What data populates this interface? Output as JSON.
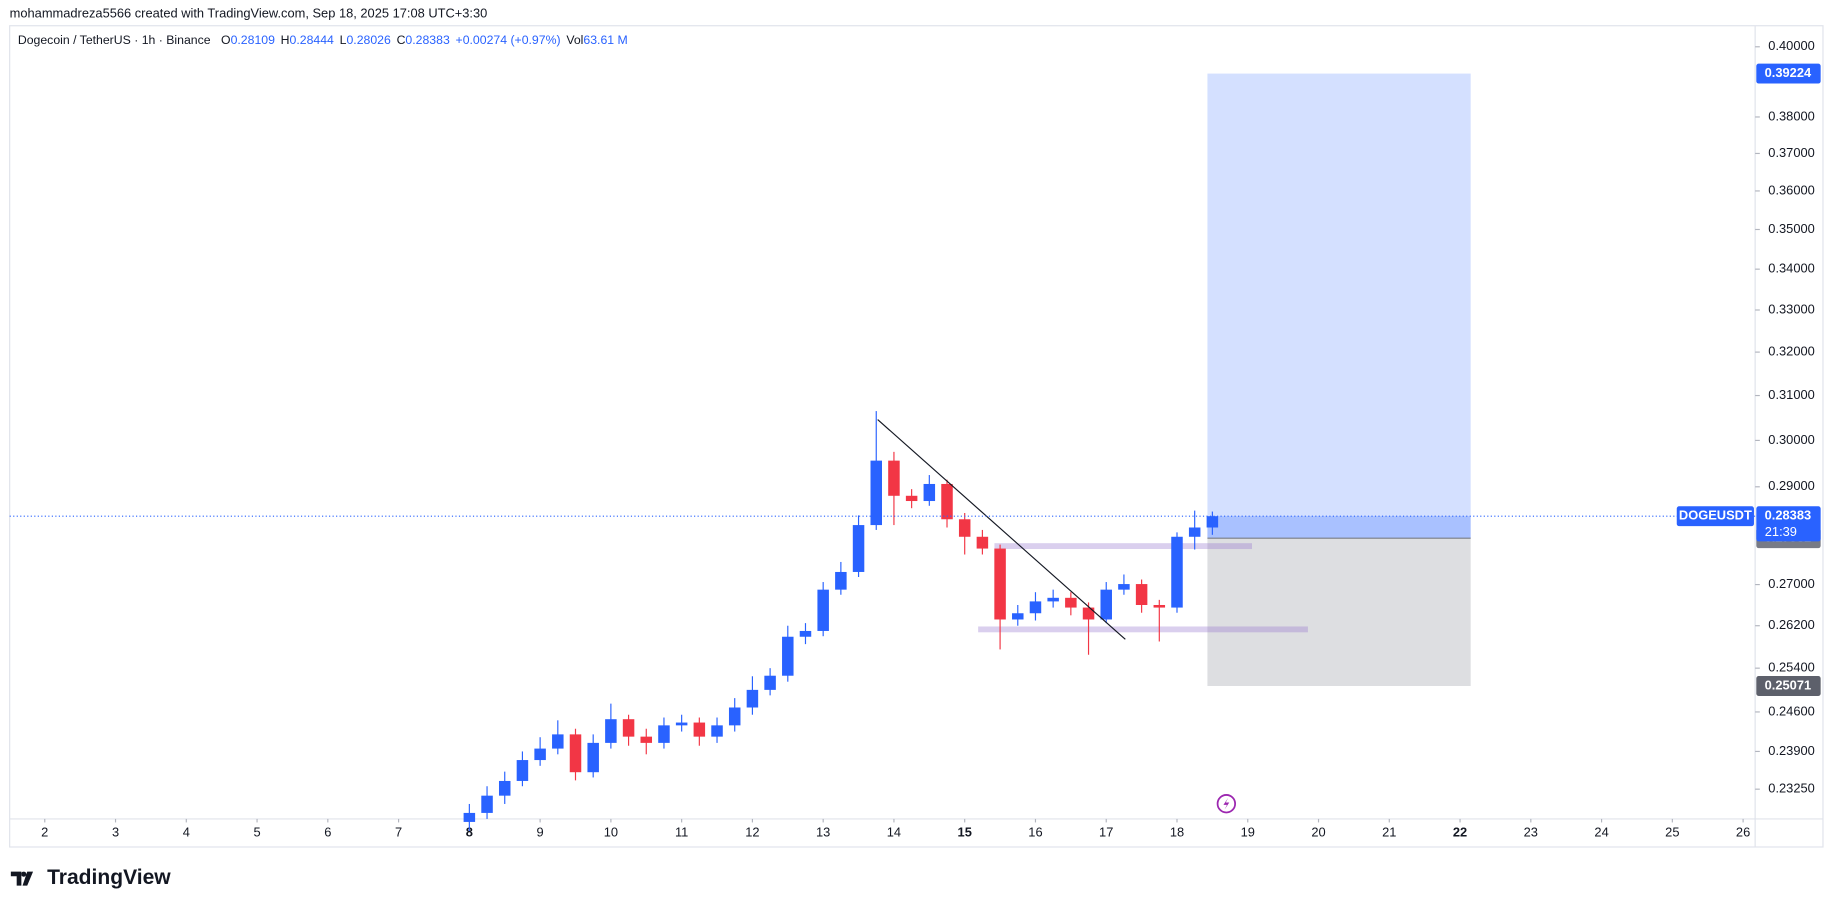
{
  "header": {
    "attribution": "mohammadreza5566 created with TradingView.com, Sep 18, 2025 17:08 UTC+3:30"
  },
  "chart_data": {
    "type": "candlestick",
    "legend": {
      "symbol": "Dogecoin / TetherUS · 1h · Binance",
      "open_label": "O",
      "open": 0.28109,
      "high_label": "H",
      "high": 0.28444,
      "low_label": "L",
      "low": 0.28026,
      "close_label": "C",
      "close": 0.28383,
      "change": "+0.00274 (+0.97%)",
      "volume_label": "Vol",
      "volume": "63.61 M"
    },
    "x": [
      8,
      8.25,
      8.5,
      8.75,
      9,
      9.25,
      9.5,
      9.75,
      10,
      10.25,
      10.5,
      10.75,
      11,
      11.25,
      11.5,
      11.75,
      12,
      12.25,
      12.5,
      12.75,
      13,
      13.25,
      13.5,
      13.75,
      14,
      14.25,
      14.5,
      14.75,
      15,
      15.25,
      15.5,
      15.75,
      16,
      16.25,
      16.5,
      16.75,
      17,
      17.25,
      17.5,
      17.75,
      18,
      18.25,
      18.5
    ],
    "open": [
      0.227,
      0.2285,
      0.2314,
      0.2339,
      0.2375,
      0.2395,
      0.242,
      0.2354,
      0.2405,
      0.2447,
      0.2416,
      0.2405,
      0.2436,
      0.2441,
      0.2416,
      0.2436,
      0.2468,
      0.25,
      0.2526,
      0.2599,
      0.261,
      0.269,
      0.2725,
      0.282,
      0.2956,
      0.2881,
      0.287,
      0.2906,
      0.2832,
      0.2796,
      0.2772,
      0.2632,
      0.2644,
      0.2667,
      0.2674,
      0.2655,
      0.2632,
      0.269,
      0.2701,
      0.266,
      0.2655,
      0.2796,
      0.2815
    ],
    "high": [
      0.23,
      0.233,
      0.2355,
      0.239,
      0.2415,
      0.2445,
      0.243,
      0.242,
      0.2475,
      0.2455,
      0.243,
      0.245,
      0.2455,
      0.245,
      0.245,
      0.2485,
      0.2525,
      0.254,
      0.262,
      0.2625,
      0.2705,
      0.2745,
      0.284,
      0.3065,
      0.2975,
      0.2895,
      0.2925,
      0.2915,
      0.2845,
      0.281,
      0.278,
      0.266,
      0.2685,
      0.269,
      0.2685,
      0.2665,
      0.2705,
      0.272,
      0.271,
      0.267,
      0.2805,
      0.285,
      0.2848
    ],
    "low": [
      0.2255,
      0.2275,
      0.23,
      0.233,
      0.2365,
      0.2385,
      0.234,
      0.2345,
      0.2395,
      0.24,
      0.2385,
      0.2395,
      0.2425,
      0.24,
      0.2405,
      0.2425,
      0.2455,
      0.249,
      0.2515,
      0.2585,
      0.26,
      0.268,
      0.2715,
      0.281,
      0.282,
      0.2855,
      0.286,
      0.2815,
      0.276,
      0.276,
      0.2575,
      0.262,
      0.263,
      0.2655,
      0.264,
      0.2565,
      0.2625,
      0.268,
      0.2645,
      0.259,
      0.2645,
      0.277,
      0.28
    ],
    "close": [
      0.2285,
      0.2314,
      0.2339,
      0.2375,
      0.2395,
      0.242,
      0.2354,
      0.2405,
      0.2447,
      0.2416,
      0.2405,
      0.2436,
      0.2441,
      0.2416,
      0.2436,
      0.2468,
      0.25,
      0.2526,
      0.2599,
      0.261,
      0.269,
      0.2725,
      0.282,
      0.2956,
      0.2881,
      0.287,
      0.2906,
      0.2832,
      0.2796,
      0.2772,
      0.2632,
      0.2644,
      0.2667,
      0.2674,
      0.2655,
      0.2632,
      0.269,
      0.2701,
      0.266,
      0.2655,
      0.2796,
      0.2815,
      0.28383
    ],
    "up_color": "#2962ff",
    "down_color": "#f23645",
    "xlim": [
      1.504,
      26.17
    ],
    "xticks": [
      2,
      3,
      4,
      5,
      6,
      7,
      8,
      9,
      10,
      11,
      12,
      13,
      14,
      15,
      16,
      17,
      18,
      19,
      20,
      21,
      22,
      23,
      24,
      25,
      26
    ],
    "bold_xticks": [
      8,
      15,
      22
    ],
    "ylim": [
      0.2275,
      0.4062
    ],
    "log": true,
    "yticks": [
      {
        "value": 0.4,
        "label": "0.40000"
      },
      {
        "value": 0.38,
        "label": "0.38000"
      },
      {
        "value": 0.37,
        "label": "0.37000"
      },
      {
        "value": 0.36,
        "label": "0.36000"
      },
      {
        "value": 0.35,
        "label": "0.35000"
      },
      {
        "value": 0.34,
        "label": "0.34000"
      },
      {
        "value": 0.33,
        "label": "0.33000"
      },
      {
        "value": 0.32,
        "label": "0.32000"
      },
      {
        "value": 0.31,
        "label": "0.31000"
      },
      {
        "value": 0.3,
        "label": "0.30000"
      },
      {
        "value": 0.29,
        "label": "0.29000"
      },
      {
        "value": 0.27,
        "label": "0.27000"
      },
      {
        "value": 0.262,
        "label": "0.26200"
      },
      {
        "value": 0.254,
        "label": "0.25400"
      },
      {
        "value": 0.246,
        "label": "0.24600"
      },
      {
        "value": 0.239,
        "label": "0.23900"
      },
      {
        "value": 0.2325,
        "label": "0.23250"
      }
    ],
    "trend_line": {
      "x": [
        13.77,
        17.27
      ],
      "y": [
        0.3046,
        0.2594
      ]
    },
    "zones": [
      {
        "x": [
          15.42,
          19.06
        ],
        "y": 0.2777
      },
      {
        "x": [
          15.19,
          19.85
        ],
        "y": 0.2613
      }
    ],
    "position": {
      "x": [
        18.43,
        22.15
      ],
      "entry": 0.27931,
      "target": 0.39224,
      "stop": 0.25071
    },
    "last_price": {
      "symbol": "DOGEUSDT",
      "value": 0.28383,
      "countdown": "21:39"
    }
  },
  "footer": {
    "logo": "TradingView"
  }
}
